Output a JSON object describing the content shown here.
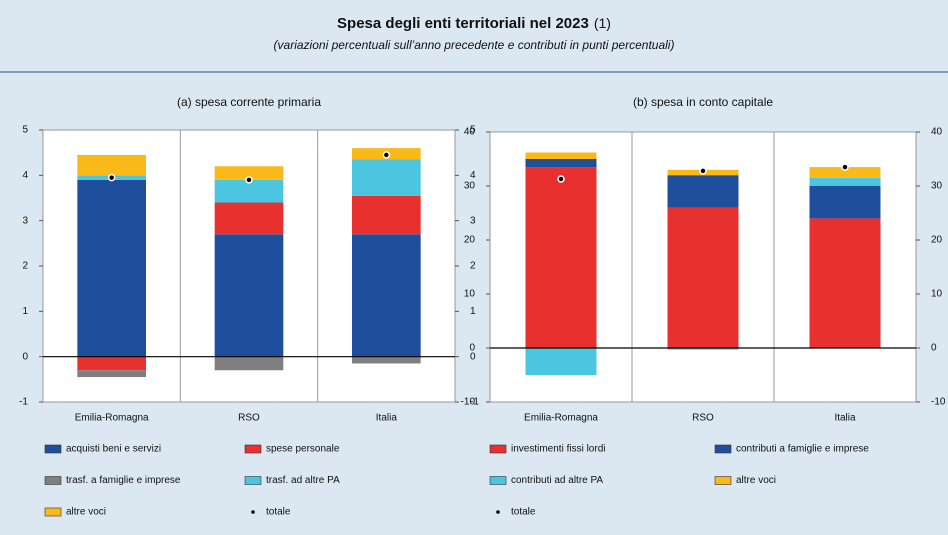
{
  "title": "Spesa degli enti territoriali nel 2023",
  "title_note": "(1)",
  "subtitle": "(variazioni percentuali sull’anno precedente e contributi in punti percentuali)",
  "chart_data": [
    {
      "type": "stacked_bar",
      "title": "(a) spesa corrente primaria",
      "categories": [
        "Emilia-Romagna",
        "RSO",
        "Italia"
      ],
      "ylim": [
        -1,
        5
      ],
      "yticks": [
        -1,
        0,
        1,
        2,
        3,
        4,
        5
      ],
      "series": [
        {
          "name": "acquisti beni e servizi",
          "color": "#1f4e9c",
          "values": [
            3.9,
            2.7,
            2.7
          ]
        },
        {
          "name": "spese personale",
          "color": "#e8302f",
          "values": [
            -0.3,
            0.7,
            0.85
          ]
        },
        {
          "name": "trasf. a famiglie e imprese",
          "color": "#7f7f7f",
          "values": [
            -0.15,
            -0.3,
            -0.15
          ]
        },
        {
          "name": "trasf. ad altre PA",
          "color": "#4cc6e0",
          "values": [
            0.1,
            0.5,
            0.8
          ]
        },
        {
          "name": "altre voci",
          "color": "#f9b919",
          "values": [
            0.45,
            0.3,
            0.25
          ]
        }
      ],
      "total": {
        "name": "totale",
        "color": "#000000",
        "values": [
          3.95,
          3.9,
          4.45
        ]
      }
    },
    {
      "type": "stacked_bar",
      "title": "(b) spesa in conto capitale",
      "categories": [
        "Emilia-Romagna",
        "RSO",
        "Italia"
      ],
      "ylim": [
        -10,
        40
      ],
      "yticks": [
        -10,
        0,
        10,
        20,
        30,
        40
      ],
      "series": [
        {
          "name": "investimenti fissi lordi",
          "color": "#e8302f",
          "values": [
            33.5,
            26,
            24
          ]
        },
        {
          "name": "contributi a famiglie e imprese",
          "color": "#1f4e9c",
          "values": [
            1.5,
            6,
            6
          ]
        },
        {
          "name": "contributi ad altre PA",
          "color": "#4cc6e0",
          "values": [
            -5,
            -0.3,
            1.5
          ]
        },
        {
          "name": "altre voci",
          "color": "#f9b919",
          "values": [
            1.2,
            1,
            2
          ]
        }
      ],
      "total": {
        "name": "totale",
        "color": "#000000",
        "values": [
          31.3,
          32.8,
          33.5
        ]
      }
    }
  ]
}
